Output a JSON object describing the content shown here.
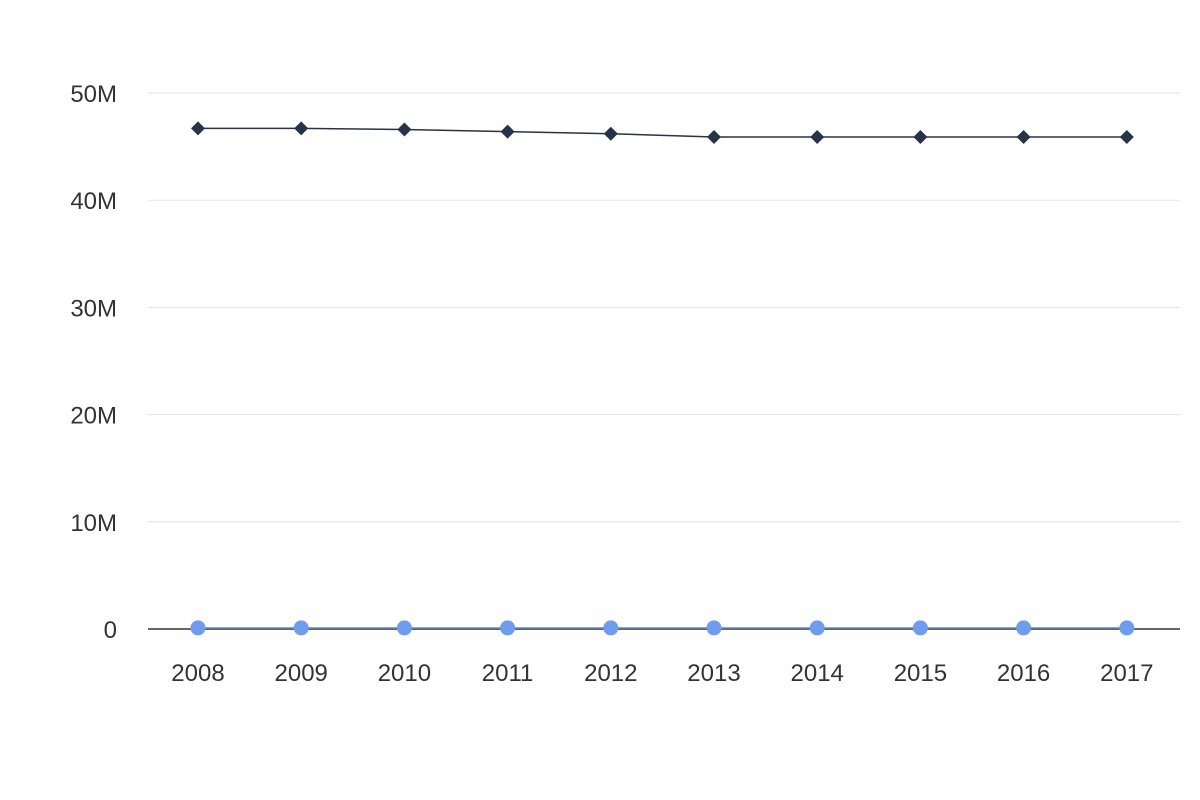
{
  "chart_data": {
    "type": "line",
    "x": [
      "2008",
      "2009",
      "2010",
      "2011",
      "2012",
      "2013",
      "2014",
      "2015",
      "2016",
      "2017"
    ],
    "ylim": [
      0,
      50000000
    ],
    "yticks": [
      {
        "value": 0,
        "label": "0"
      },
      {
        "value": 10000000,
        "label": "10M"
      },
      {
        "value": 20000000,
        "label": "20M"
      },
      {
        "value": 30000000,
        "label": "30M"
      },
      {
        "value": 40000000,
        "label": "40M"
      },
      {
        "value": 50000000,
        "label": "50M"
      }
    ],
    "grid": true,
    "legend": "none",
    "series": [
      {
        "color": "#253448",
        "marker": "diamond",
        "values": [
          46700000,
          46700000,
          46600000,
          46400000,
          46200000,
          45900000,
          45900000,
          45900000,
          45900000,
          45900000
        ]
      },
      {
        "color": "#6f9ced",
        "marker": "circle",
        "values": [
          100000,
          100000,
          100000,
          100000,
          100000,
          100000,
          100000,
          100000,
          100000,
          100000
        ]
      }
    ]
  }
}
